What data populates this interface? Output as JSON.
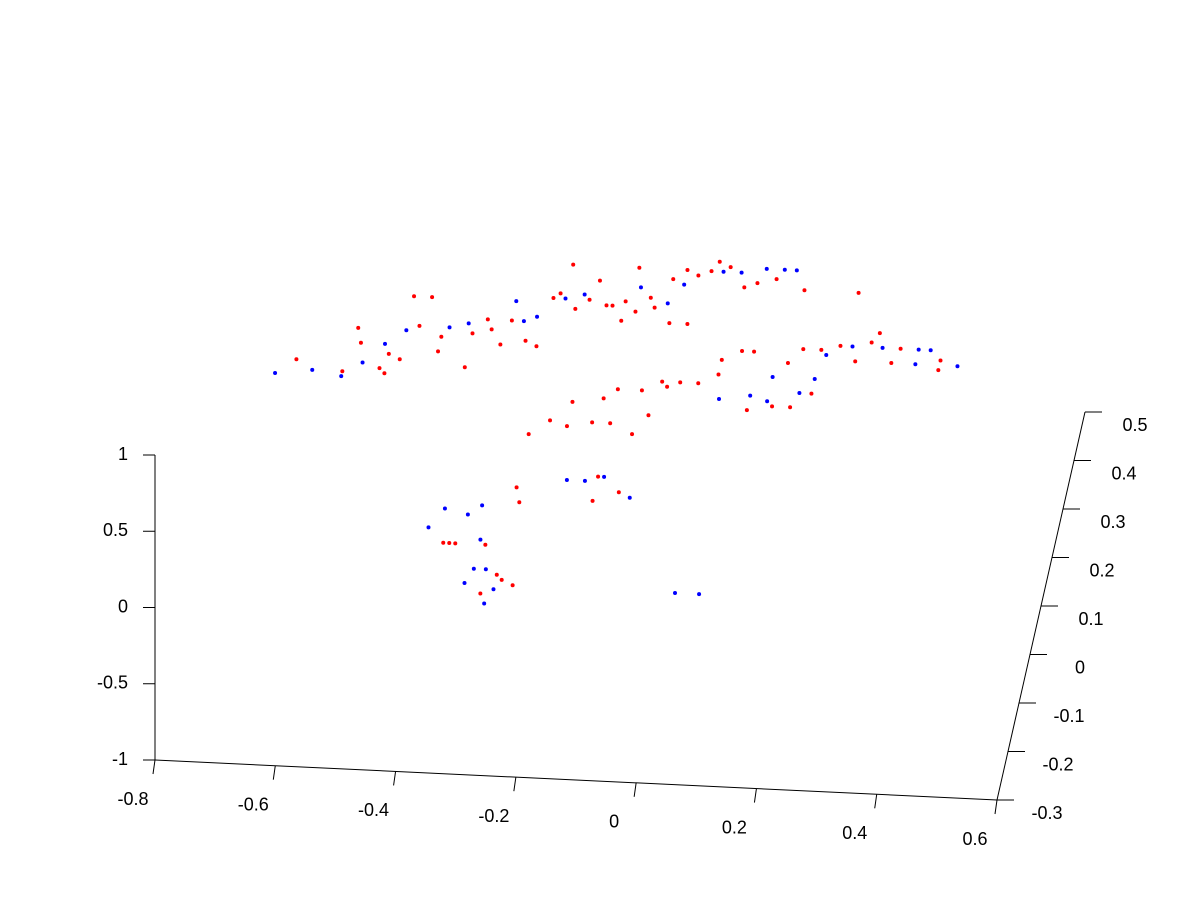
{
  "chart_data": {
    "type": "scatter3d",
    "xlim": [
      -0.8,
      0.6
    ],
    "ylim": [
      -0.3,
      0.5
    ],
    "zlim": [
      -1,
      1
    ],
    "xticks": [
      -0.8,
      -0.6,
      -0.4,
      -0.2,
      0,
      0.2,
      0.4,
      0.6
    ],
    "yticks": [
      -0.3,
      -0.2,
      -0.1,
      0,
      0.1,
      0.2,
      0.3,
      0.4,
      0.5
    ],
    "zticks": [
      -1,
      -0.5,
      0,
      0.5,
      1
    ],
    "series": [
      {
        "color": "#0000ff",
        "x": [
          -0.69,
          -0.63,
          -0.58,
          -0.55,
          -0.52,
          -0.49,
          -0.42,
          -0.39,
          -0.32,
          -0.28,
          -0.24,
          -0.21,
          -0.12,
          -0.07,
          -0.05,
          0.01,
          0.04,
          0.08,
          0.11,
          0.13,
          0.21,
          0.25,
          0.3,
          0.36,
          0.38,
          0.43,
          0.36,
          0.05,
          0.1,
          0.13,
          0.13,
          0.18,
          0.2,
          -0.17,
          -0.14,
          -0.11,
          -0.06,
          -0.38,
          -0.36,
          -0.32,
          -0.29,
          -0.3,
          -0.29,
          -0.3,
          -0.27,
          -0.25,
          -0.26,
          0.05,
          0.09,
          -0.3
        ],
        "y": [
          0.19,
          0.2,
          0.19,
          0.22,
          0.26,
          0.29,
          0.3,
          0.31,
          0.36,
          0.33,
          0.37,
          0.38,
          0.4,
          0.37,
          0.41,
          0.44,
          0.44,
          0.45,
          0.45,
          0.45,
          0.28,
          0.3,
          0.3,
          0.3,
          0.3,
          0.27,
          0.27,
          0.18,
          0.19,
          0.23,
          0.18,
          0.2,
          0.23,
          0.0,
          0.0,
          0.01,
          -0.03,
          -0.11,
          -0.07,
          -0.08,
          -0.13,
          -0.06,
          -0.19,
          -0.22,
          -0.19,
          -0.23,
          -0.26,
          -0.22,
          -0.22,
          0.32
        ],
        "z": [
          0,
          0,
          0,
          0,
          0,
          0,
          0,
          0,
          0,
          0,
          0,
          0,
          0,
          0,
          0,
          0,
          0,
          0,
          0,
          0,
          0,
          0,
          0,
          0,
          0,
          0,
          0,
          0,
          0,
          0,
          0,
          0,
          0,
          0,
          0,
          0,
          0,
          0,
          0,
          0,
          0,
          0,
          0,
          0,
          0,
          0,
          0,
          0,
          0,
          0
        ]
      },
      {
        "color": "#ff0000",
        "x": [
          -0.66,
          -0.58,
          -0.57,
          -0.56,
          -0.52,
          -0.51,
          -0.51,
          -0.49,
          -0.49,
          -0.47,
          -0.46,
          -0.43,
          -0.43,
          -0.38,
          -0.38,
          -0.36,
          -0.35,
          -0.33,
          -0.32,
          -0.29,
          -0.27,
          -0.26,
          -0.25,
          -0.24,
          -0.22,
          -0.2,
          -0.19,
          -0.17,
          -0.16,
          -0.14,
          -0.14,
          -0.12,
          -0.13,
          -0.1,
          -0.09,
          -0.06,
          -0.07,
          -0.03,
          -0.05,
          -0.03,
          -0.01,
          0.0,
          0.02,
          0.05,
          0.07,
          0.1,
          0.15,
          0.24,
          -0.25,
          -0.22,
          -0.19,
          -0.19,
          -0.15,
          -0.14,
          -0.12,
          -0.12,
          -0.08,
          -0.08,
          -0.06,
          -0.05,
          -0.04,
          -0.02,
          0.01,
          0.04,
          0.04,
          0.07,
          0.1,
          0.09,
          0.14,
          0.15,
          0.17,
          0.17,
          0.2,
          0.2,
          0.23,
          0.26,
          0.28,
          0.29,
          0.32,
          0.33,
          0.4,
          0.4,
          -0.25,
          -0.24,
          -0.12,
          -0.12,
          -0.08,
          -0.35,
          -0.34,
          -0.33,
          -0.28,
          -0.24,
          -0.22,
          -0.27,
          -0.25
        ],
        "y": [
          0.22,
          0.2,
          0.29,
          0.26,
          0.21,
          0.2,
          0.24,
          0.23,
          0.36,
          0.3,
          0.36,
          0.25,
          0.28,
          0.22,
          0.29,
          0.32,
          0.3,
          0.27,
          0.32,
          0.28,
          0.27,
          0.37,
          0.38,
          0.44,
          0.35,
          0.37,
          0.41,
          0.36,
          0.36,
          0.33,
          0.37,
          0.35,
          0.44,
          0.38,
          0.36,
          0.33,
          0.42,
          0.33,
          0.44,
          0.43,
          0.44,
          0.46,
          0.45,
          0.41,
          0.42,
          0.43,
          0.41,
          0.41,
          0.09,
          0.12,
          0.11,
          0.16,
          0.12,
          0.17,
          0.12,
          0.19,
          0.1,
          0.19,
          0.14,
          0.21,
          0.2,
          0.21,
          0.21,
          0.23,
          0.26,
          0.28,
          0.16,
          0.28,
          0.17,
          0.26,
          0.17,
          0.29,
          0.2,
          0.29,
          0.3,
          0.27,
          0.31,
          0.33,
          0.27,
          0.3,
          0.28,
          0.26,
          -0.02,
          -0.05,
          0.01,
          -0.04,
          -0.02,
          -0.14,
          -0.14,
          -0.14,
          -0.14,
          -0.21,
          -0.22,
          -0.24,
          -0.2
        ],
        "z": [
          0,
          0,
          0,
          0,
          0,
          0,
          0,
          0,
          0,
          0,
          0,
          0,
          0,
          0,
          0,
          0,
          0,
          0,
          0,
          0,
          0,
          0,
          0,
          0,
          0,
          0,
          0,
          0,
          0,
          0,
          0,
          0,
          0,
          0,
          0,
          0,
          0,
          0,
          0,
          0,
          0,
          0,
          0,
          0,
          0,
          0,
          0,
          0,
          0,
          0,
          0,
          0,
          0,
          0,
          0,
          0,
          0,
          0,
          0,
          0,
          0,
          0,
          0,
          0,
          0,
          0,
          0,
          0,
          0,
          0,
          0,
          0,
          0,
          0,
          0,
          0,
          0,
          0,
          0,
          0,
          0,
          0,
          0,
          0,
          0,
          0,
          0,
          0,
          0,
          0,
          0,
          0,
          0,
          0,
          0
        ]
      }
    ]
  }
}
